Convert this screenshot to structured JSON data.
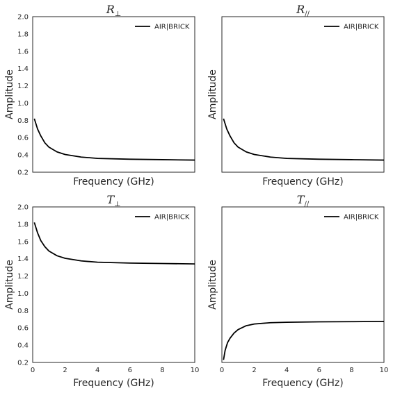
{
  "chart_data": [
    {
      "type": "line",
      "title": "R",
      "title_sub": "⊥",
      "xlabel": "Frequency (GHz)",
      "ylabel": "Amplitude",
      "xlim": [
        0,
        10
      ],
      "ylim": [
        0.2,
        2.0
      ],
      "yticks": [
        "0.2",
        "0.4",
        "0.6",
        "0.8",
        "1.0",
        "1.2",
        "1.4",
        "1.6",
        "1.8",
        "2.0"
      ],
      "xticks": [],
      "grid": false,
      "legend_position": "upper-right",
      "series": [
        {
          "name": "AIR|BRICK",
          "color": "#000000",
          "x": [
            0.1,
            0.3,
            0.5,
            0.75,
            1.0,
            1.5,
            2.0,
            3.0,
            4.0,
            6.0,
            8.0,
            10.0
          ],
          "y": [
            0.82,
            0.7,
            0.62,
            0.54,
            0.49,
            0.435,
            0.405,
            0.375,
            0.36,
            0.35,
            0.345,
            0.34
          ]
        }
      ]
    },
    {
      "type": "line",
      "title": "R",
      "title_sub": "//",
      "xlabel": "Frequency (GHz)",
      "ylabel": "Amplitude",
      "xlim": [
        0,
        10
      ],
      "ylim": [
        0.2,
        2.0
      ],
      "yticks": [],
      "xticks": [],
      "grid": false,
      "legend_position": "upper-right",
      "series": [
        {
          "name": "AIR|BRICK",
          "color": "#000000",
          "x": [
            0.1,
            0.3,
            0.5,
            0.75,
            1.0,
            1.5,
            2.0,
            3.0,
            4.0,
            6.0,
            8.0,
            10.0
          ],
          "y": [
            0.82,
            0.7,
            0.62,
            0.54,
            0.49,
            0.435,
            0.405,
            0.375,
            0.36,
            0.35,
            0.345,
            0.34
          ]
        }
      ]
    },
    {
      "type": "line",
      "title": "T",
      "title_sub": "⊥",
      "xlabel": "Frequency (GHz)",
      "ylabel": "Amplitude",
      "xlim": [
        0,
        10
      ],
      "ylim": [
        0.2,
        2.0
      ],
      "yticks": [
        "0.2",
        "0.4",
        "0.6",
        "0.8",
        "1.0",
        "1.2",
        "1.4",
        "1.6",
        "1.8",
        "2.0"
      ],
      "xticks": [
        "0",
        "2",
        "4",
        "6",
        "8",
        "10"
      ],
      "grid": false,
      "legend_position": "upper-right",
      "series": [
        {
          "name": "AIR|BRICK",
          "color": "#000000",
          "x": [
            0.1,
            0.3,
            0.5,
            0.75,
            1.0,
            1.5,
            2.0,
            3.0,
            4.0,
            6.0,
            8.0,
            10.0
          ],
          "y": [
            1.82,
            1.7,
            1.61,
            1.54,
            1.49,
            1.435,
            1.405,
            1.375,
            1.36,
            1.35,
            1.345,
            1.34
          ]
        }
      ]
    },
    {
      "type": "line",
      "title": "T",
      "title_sub": "//",
      "xlabel": "Frequency (GHz)",
      "ylabel": "Amplitude",
      "xlim": [
        0,
        10
      ],
      "ylim": [
        0.2,
        2.0
      ],
      "yticks": [],
      "xticks": [
        "0",
        "2",
        "4",
        "6",
        "8",
        "10"
      ],
      "grid": false,
      "legend_position": "upper-right",
      "series": [
        {
          "name": "AIR|BRICK",
          "color": "#000000",
          "x": [
            0.1,
            0.2,
            0.35,
            0.5,
            0.75,
            1.0,
            1.5,
            2.0,
            3.0,
            4.0,
            6.0,
            8.0,
            10.0
          ],
          "y": [
            0.23,
            0.34,
            0.43,
            0.48,
            0.54,
            0.58,
            0.625,
            0.645,
            0.66,
            0.665,
            0.67,
            0.672,
            0.675
          ]
        }
      ]
    }
  ]
}
